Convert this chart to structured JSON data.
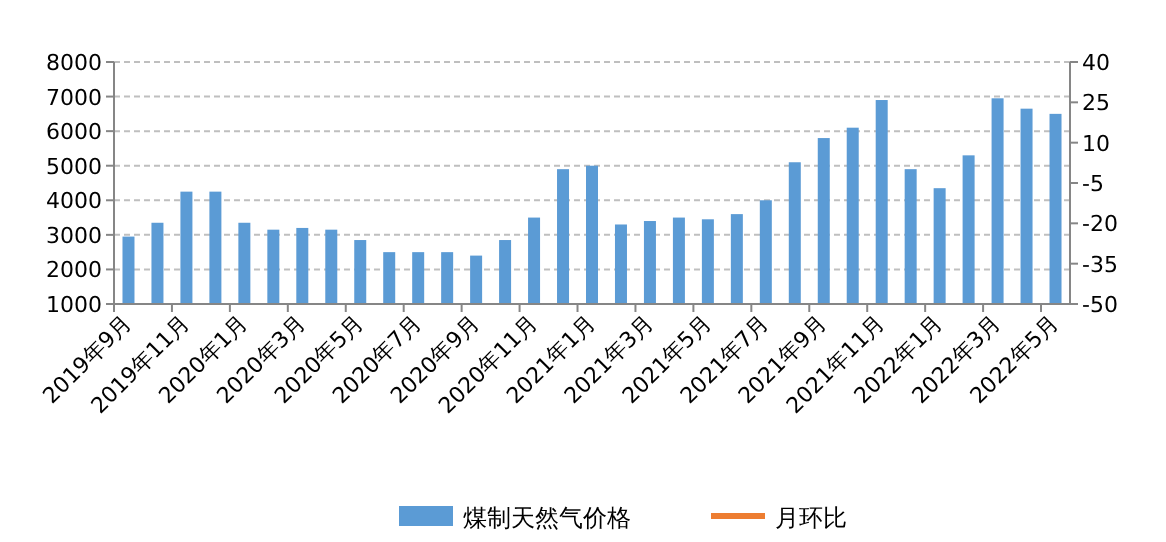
{
  "chart_data": {
    "type": "bar",
    "categories": [
      "2019年9月",
      null,
      "2019年11月",
      null,
      "2020年1月",
      null,
      "2020年3月",
      null,
      "2020年5月",
      null,
      "2020年7月",
      null,
      "2020年9月",
      null,
      "2020年11月",
      null,
      "2021年1月",
      null,
      "2021年3月",
      null,
      "2021年5月",
      null,
      "2021年7月",
      null,
      "2021年9月",
      null,
      "2021年11月",
      null,
      "2022年1月",
      null,
      "2022年3月",
      null,
      "2022年5月"
    ],
    "series": [
      {
        "name": "煤制天然气价格",
        "color": "#5b9bd5",
        "values": [
          2950,
          3350,
          4250,
          4250,
          3350,
          3150,
          3200,
          3150,
          2850,
          2500,
          2500,
          2500,
          2400,
          2850,
          3500,
          4900,
          5000,
          3300,
          3400,
          3500,
          3450,
          3600,
          4000,
          5100,
          5800,
          6100,
          6900,
          4900,
          4350,
          5300,
          6950,
          6650,
          6500
        ]
      },
      {
        "name": "月环比",
        "type": "line",
        "axis": "y2",
        "color": "#ed7d31",
        "values": [
          null,
          null,
          null,
          null,
          null,
          null,
          null,
          null,
          null,
          null,
          null,
          null,
          null,
          null,
          null,
          null,
          null,
          null,
          null,
          null,
          null,
          null,
          null,
          null,
          null,
          null,
          null,
          null,
          null,
          null,
          null,
          null,
          null
        ]
      }
    ],
    "ylim": [
      1000,
      8000
    ],
    "yticks": [
      1000,
      2000,
      3000,
      4000,
      5000,
      6000,
      7000,
      8000
    ],
    "y2lim": [
      -50,
      40
    ],
    "y2ticks": [
      -50,
      -35,
      -20,
      -5,
      10,
      25,
      40
    ],
    "grid": "y",
    "legend": "bottom"
  }
}
